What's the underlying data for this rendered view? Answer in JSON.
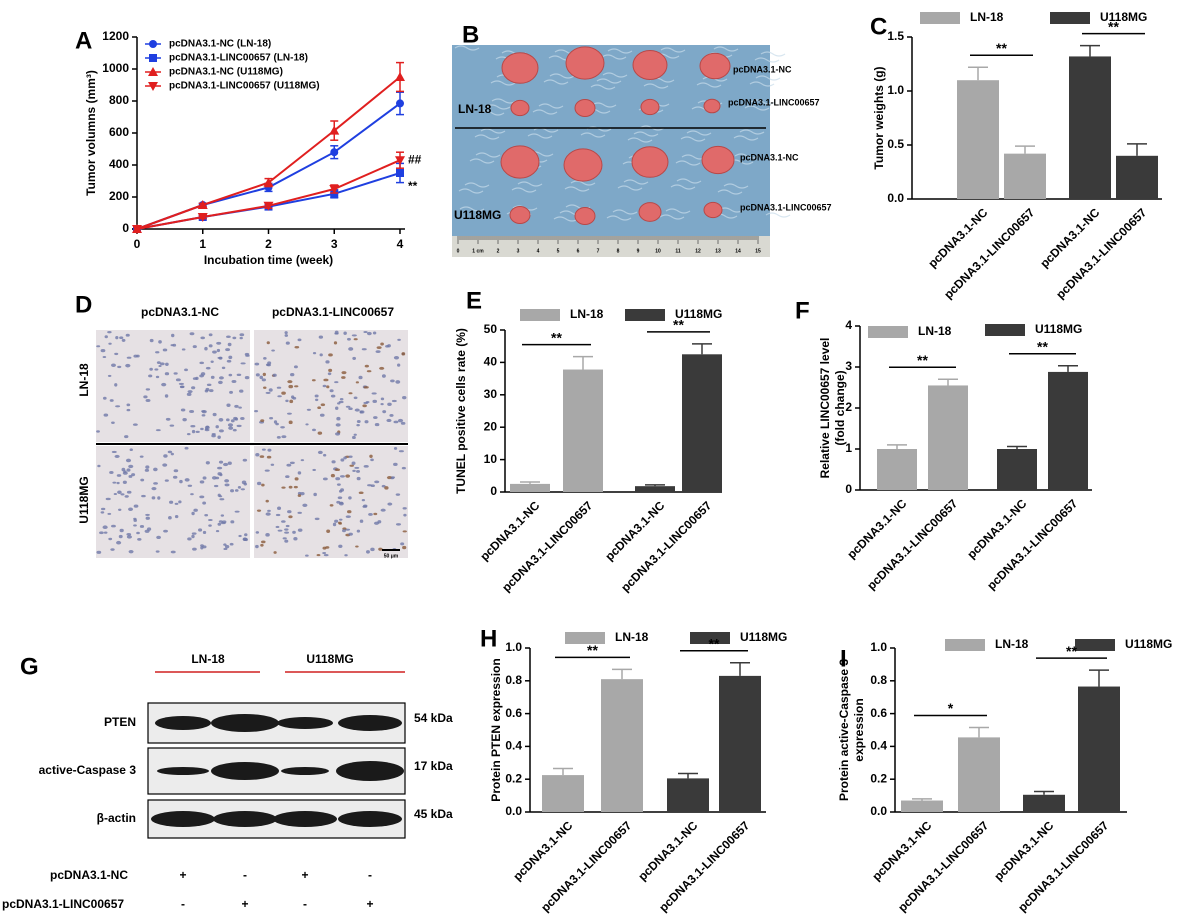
{
  "chart_data": [
    {
      "type": "line",
      "panel": "A",
      "xlabel": "Incubation time (week)",
      "ylabel": "Tumor volumns (mm³)",
      "x": [
        0,
        1,
        2,
        3,
        4
      ],
      "xlim": [
        0,
        4
      ],
      "xticks": [
        0,
        1,
        2,
        3,
        4
      ],
      "ylim": [
        0,
        1200
      ],
      "yticks": [
        0,
        200,
        400,
        600,
        800,
        1000,
        1200
      ],
      "series": [
        {
          "name": "pcDNA3.1-NC (LN-18)",
          "color": "#1f3fe0",
          "marker": "circle",
          "values": [
            0,
            150,
            260,
            480,
            785
          ],
          "errors": [
            0,
            10,
            25,
            40,
            70
          ]
        },
        {
          "name": "pcDNA3.1-LINC00657 (LN-18)",
          "color": "#1f3fe0",
          "marker": "square",
          "values": [
            0,
            75,
            140,
            220,
            350
          ],
          "errors": [
            0,
            10,
            15,
            25,
            60
          ]
        },
        {
          "name": "pcDNA3.1-NC (U118MG)",
          "color": "#e01f1f",
          "marker": "triangle",
          "values": [
            0,
            150,
            290,
            615,
            950
          ],
          "errors": [
            0,
            10,
            25,
            60,
            90
          ]
        },
        {
          "name": "pcDNA3.1-LINC00657 (U118MG)",
          "color": "#e01f1f",
          "marker": "triangle-down",
          "values": [
            0,
            75,
            145,
            250,
            430
          ],
          "errors": [
            0,
            10,
            15,
            25,
            50
          ]
        }
      ],
      "annotations": [
        "##",
        "**"
      ]
    },
    {
      "type": "bar",
      "panel": "C",
      "ylabel": [
        "Tumor weights (g)"
      ],
      "categories": [
        "pcDNA3.1-NC",
        "pcDNA3.1-LINC00657",
        "pcDNA3.1-NC",
        "pcDNA3.1-LINC00657"
      ],
      "ylim": [
        0,
        1.5
      ],
      "yticks": [
        {
          "value": 0,
          "label": "0.0"
        },
        0.5,
        {
          "value": 1,
          "label": "1.0"
        },
        1.5
      ],
      "series": [
        {
          "name": "LN-18",
          "color": "#a8a8a8",
          "values": [
            1.1,
            0.42,
            null,
            null
          ],
          "errors": [
            0.12,
            0.07,
            null,
            null
          ]
        },
        {
          "name": "U118MG",
          "color": "#3a3a3a",
          "values": [
            null,
            null,
            1.32,
            0.4
          ],
          "errors": [
            null,
            null,
            0.1,
            0.11
          ]
        }
      ],
      "annotations": [
        "**",
        "**"
      ]
    },
    {
      "type": "bar",
      "panel": "E",
      "ylabel": [
        "TUNEL positive cells rate (%)"
      ],
      "categories": [
        "pcDNA3.1-NC",
        "pcDNA3.1-LINC00657",
        "pcDNA3.1-NC",
        "pcDNA3.1-LINC00657"
      ],
      "ylim": [
        0,
        50
      ],
      "yticks": [
        0,
        10,
        20,
        30,
        40,
        50
      ],
      "series": [
        {
          "name": "LN-18",
          "color": "#a8a8a8",
          "values": [
            2.5,
            37.8,
            null,
            null
          ],
          "errors": [
            0.6,
            4,
            null,
            null
          ]
        },
        {
          "name": "U118MG",
          "color": "#3a3a3a",
          "values": [
            null,
            null,
            1.8,
            42.5
          ],
          "errors": [
            null,
            null,
            0.4,
            3.2
          ]
        }
      ],
      "annotations": [
        "**",
        "**"
      ]
    },
    {
      "type": "bar",
      "panel": "F",
      "ylabel": [
        "Relative LINC00657 level",
        "(fold change)"
      ],
      "categories": [
        "pcDNA3.1-NC",
        "pcDNA3.1-LINC00657",
        "pcDNA3.1-NC",
        "pcDNA3.1-LINC00657"
      ],
      "ylim": [
        0,
        4
      ],
      "yticks": [
        0,
        1,
        2,
        3,
        4
      ],
      "series": [
        {
          "name": "LN-18",
          "color": "#a8a8a8",
          "values": [
            1.0,
            2.55,
            null,
            null
          ],
          "errors": [
            0.1,
            0.15,
            null,
            null
          ]
        },
        {
          "name": "U118MG",
          "color": "#3a3a3a",
          "values": [
            null,
            null,
            1.0,
            2.88
          ],
          "errors": [
            null,
            null,
            0.06,
            0.15
          ]
        }
      ],
      "annotations": [
        "**",
        "**"
      ]
    },
    {
      "type": "bar",
      "panel": "H",
      "ylabel": [
        "Protein PTEN expression"
      ],
      "categories": [
        "pcDNA3.1-NC",
        "pcDNA3.1-LINC00657",
        "pcDNA3.1-NC",
        "pcDNA3.1-LINC00657"
      ],
      "ylim": [
        0,
        1
      ],
      "yticks": [
        {
          "value": 0,
          "label": "0.0"
        },
        0.2,
        0.4,
        0.6,
        0.8,
        {
          "value": 1,
          "label": "1.0"
        }
      ],
      "series": [
        {
          "name": "LN-18",
          "color": "#a8a8a8",
          "values": [
            0.225,
            0.81,
            null,
            null
          ],
          "errors": [
            0.04,
            0.06,
            null,
            null
          ]
        },
        {
          "name": "U118MG",
          "color": "#3a3a3a",
          "values": [
            null,
            null,
            0.205,
            0.83
          ],
          "errors": [
            null,
            null,
            0.03,
            0.08
          ]
        }
      ],
      "annotations": [
        "**",
        "**"
      ]
    },
    {
      "type": "bar",
      "panel": "I",
      "ylabel": [
        "Protein active-Caspase 3",
        "expression"
      ],
      "categories": [
        "pcDNA3.1-NC",
        "pcDNA3.1-LINC00657",
        "pcDNA3.1-NC",
        "pcDNA3.1-LINC00657"
      ],
      "ylim": [
        0,
        1
      ],
      "yticks": [
        {
          "value": 0,
          "label": "0.0"
        },
        0.2,
        0.4,
        0.6,
        0.8,
        {
          "value": 1,
          "label": "1.0"
        }
      ],
      "series": [
        {
          "name": "LN-18",
          "color": "#a8a8a8",
          "values": [
            0.07,
            0.455,
            null,
            null
          ],
          "errors": [
            0.01,
            0.06,
            null,
            null
          ]
        },
        {
          "name": "U118MG",
          "color": "#3a3a3a",
          "values": [
            null,
            null,
            0.105,
            0.765
          ],
          "errors": [
            null,
            null,
            0.02,
            0.1
          ]
        }
      ],
      "annotations": [
        "*",
        "**"
      ]
    }
  ],
  "tumor_photo": {
    "panel": "B",
    "rows": [
      "LN-18",
      "U118MG"
    ],
    "labels": [
      "pcDNA3.1-NC",
      "pcDNA3.1-LINC00657",
      "pcDNA3.1-NC",
      "pcDNA3.1-LINC00657"
    ],
    "ruler": [
      "0",
      "1 cm",
      "2",
      "3",
      "4",
      "5",
      "6",
      "7",
      "8",
      "9",
      "10",
      "11",
      "12",
      "13",
      "14",
      "15"
    ]
  },
  "histology": {
    "panel": "D",
    "columns": [
      "pcDNA3.1-NC",
      "pcDNA3.1-LINC00657"
    ],
    "rows": [
      "LN-18",
      "U118MG"
    ],
    "scale": "50 μm"
  },
  "blot": {
    "panel": "G",
    "groups": [
      "LN-18",
      "U118MG"
    ],
    "rows": [
      {
        "label": "PTEN",
        "size": "54 kDa"
      },
      {
        "label": "active-Caspase 3",
        "size": "17 kDa"
      },
      {
        "label": "β-actin",
        "size": "45 kDa"
      }
    ],
    "conditions": [
      {
        "label": "pcDNA3.1-NC",
        "signs": [
          "+",
          "-",
          "+",
          "-"
        ]
      },
      {
        "label": "pcDNA3.1-LINC00657",
        "signs": [
          "-",
          "+",
          "-",
          "+"
        ]
      }
    ]
  }
}
